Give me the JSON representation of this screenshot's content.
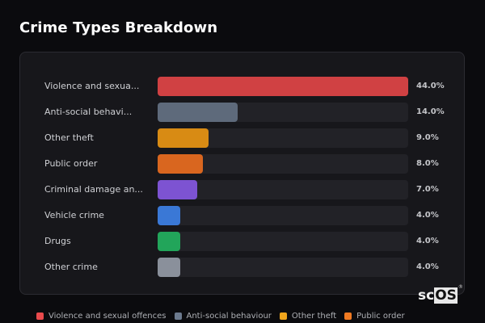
{
  "header": {
    "title": "Crime Types Breakdown"
  },
  "watermark": {
    "prefix": "sc",
    "highlight": "OS",
    "mark": "®"
  },
  "chart_data": {
    "type": "bar",
    "orientation": "horizontal",
    "title": "Crime Types Breakdown",
    "xlabel": "",
    "ylabel": "",
    "scale_max": 44.0,
    "categories": [
      "Violence and sexual offences",
      "Anti-social behaviour",
      "Other theft",
      "Public order",
      "Criminal damage and arson",
      "Vehicle crime",
      "Drugs",
      "Other crime"
    ],
    "display_labels": [
      "Violence and sexua...",
      "Anti-social behavi...",
      "Other theft",
      "Public order",
      "Criminal damage an...",
      "Vehicle crime",
      "Drugs",
      "Other crime"
    ],
    "values": [
      44.0,
      14.0,
      9.0,
      8.0,
      7.0,
      4.0,
      4.0,
      4.0
    ],
    "value_labels": [
      "44.0%",
      "14.0%",
      "9.0%",
      "8.0%",
      "7.0%",
      "4.0%",
      "4.0%",
      "4.0%"
    ],
    "colors": [
      "#d04143",
      "#5e6a7b",
      "#d88b14",
      "#d9661f",
      "#7d53d2",
      "#3a78d6",
      "#22a55a",
      "#8a909b"
    ],
    "legend": {
      "position": "bottom",
      "entries": [
        {
          "label": "Violence and sexual offences",
          "color": "#e94a4c"
        },
        {
          "label": "Anti-social behaviour",
          "color": "#6c7a8e"
        },
        {
          "label": "Other theft",
          "color": "#f0a51c"
        },
        {
          "label": "Public order",
          "color": "#f07a22"
        }
      ]
    },
    "grid": false
  }
}
